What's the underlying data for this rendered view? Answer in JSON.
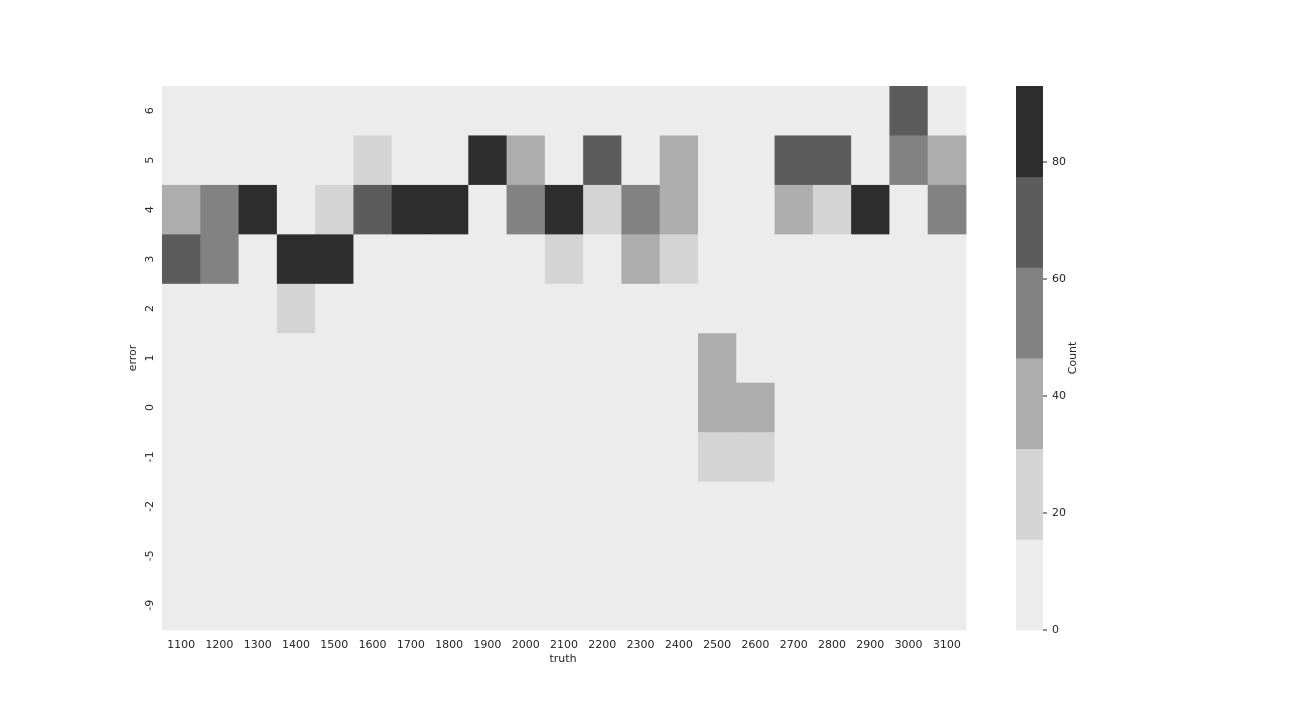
{
  "chart_data": {
    "type": "heatmap",
    "title": "",
    "xlabel": "truth",
    "ylabel": "error",
    "x_categories": [
      "1100",
      "1200",
      "1300",
      "1400",
      "1500",
      "1600",
      "1700",
      "1800",
      "1900",
      "2000",
      "2100",
      "2200",
      "2300",
      "2400",
      "2500",
      "2600",
      "2700",
      "2800",
      "2900",
      "3000",
      "3100"
    ],
    "y_categories": [
      "6",
      "5",
      "4",
      "3",
      "2",
      "1",
      "0",
      "-1",
      "-2",
      "-5",
      "-9"
    ],
    "values": [
      [
        0,
        0,
        0,
        0,
        0,
        0,
        0,
        0,
        0,
        0,
        0,
        0,
        0,
        0,
        0,
        0,
        0,
        0,
        0,
        65,
        0
      ],
      [
        0,
        0,
        0,
        0,
        0,
        25,
        0,
        0,
        90,
        40,
        0,
        75,
        0,
        40,
        0,
        0,
        70,
        70,
        0,
        60,
        40
      ],
      [
        40,
        55,
        90,
        0,
        25,
        70,
        90,
        90,
        0,
        55,
        90,
        25,
        55,
        40,
        0,
        0,
        40,
        25,
        90,
        0,
        55
      ],
      [
        70,
        55,
        0,
        90,
        90,
        0,
        0,
        0,
        0,
        0,
        25,
        0,
        40,
        25,
        0,
        0,
        0,
        0,
        0,
        0,
        0
      ],
      [
        0,
        0,
        0,
        25,
        0,
        0,
        0,
        0,
        0,
        0,
        0,
        0,
        0,
        0,
        0,
        0,
        0,
        0,
        0,
        0,
        0
      ],
      [
        0,
        0,
        0,
        0,
        0,
        0,
        0,
        0,
        0,
        0,
        0,
        0,
        0,
        0,
        40,
        0,
        0,
        0,
        0,
        0,
        0
      ],
      [
        0,
        0,
        0,
        0,
        0,
        0,
        0,
        0,
        0,
        0,
        0,
        0,
        0,
        0,
        40,
        40,
        0,
        0,
        0,
        0,
        0
      ],
      [
        0,
        0,
        0,
        0,
        0,
        0,
        0,
        0,
        0,
        0,
        0,
        0,
        0,
        0,
        25,
        25,
        0,
        0,
        0,
        0,
        0
      ],
      [
        0,
        0,
        0,
        0,
        0,
        0,
        0,
        0,
        0,
        0,
        0,
        0,
        0,
        0,
        0,
        0,
        0,
        0,
        0,
        0,
        0
      ],
      [
        0,
        0,
        0,
        0,
        0,
        0,
        0,
        0,
        0,
        0,
        0,
        0,
        0,
        0,
        0,
        0,
        0,
        0,
        0,
        0,
        0
      ],
      [
        0,
        0,
        0,
        0,
        0,
        0,
        0,
        0,
        0,
        0,
        0,
        0,
        0,
        0,
        0,
        0,
        0,
        0,
        0,
        0,
        0
      ]
    ],
    "colorbar": {
      "label": "Count",
      "range": [
        0,
        93
      ],
      "bin_edges": [
        0,
        15.5,
        31,
        46.5,
        62,
        77.5,
        93
      ],
      "bin_colors": [
        "#ececec",
        "#d4d4d4",
        "#adadad",
        "#828282",
        "#5c5c5c",
        "#2d2d2d"
      ],
      "ticks": [
        0,
        20,
        40,
        60,
        80
      ],
      "tick_labels": [
        "0",
        "20",
        "40",
        "60",
        "80"
      ]
    },
    "grid": false,
    "legend": "colorbar-right"
  }
}
